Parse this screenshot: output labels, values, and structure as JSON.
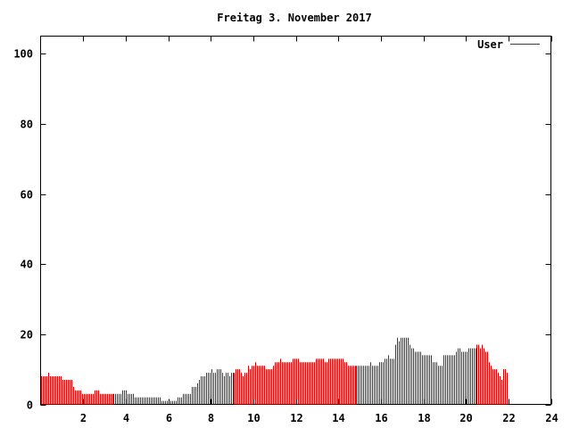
{
  "chart_data": {
    "type": "bar",
    "title": "Freitag 3. November 2017",
    "xlabel": "",
    "ylabel": "",
    "xlim": [
      0,
      24
    ],
    "ylim": [
      0,
      105
    ],
    "x_ticks": [
      2,
      4,
      6,
      8,
      10,
      12,
      14,
      16,
      18,
      20,
      22,
      24
    ],
    "y_ticks": [
      0,
      20,
      40,
      60,
      80,
      100
    ],
    "grid": false,
    "legend_position": "top-right",
    "bar_color": "#cc0000",
    "series": [
      {
        "name": "User",
        "step_hours": 0.0833,
        "values": [
          8,
          8,
          8,
          8,
          9,
          8,
          8,
          8,
          8,
          8,
          8,
          8,
          7,
          7,
          7,
          7,
          7,
          7,
          5,
          4,
          4,
          4,
          4,
          3,
          3,
          3,
          3,
          3,
          3,
          3,
          4,
          4,
          4,
          3,
          3,
          3,
          3,
          3,
          3,
          3,
          3,
          3,
          3,
          3,
          3,
          3,
          4,
          4,
          4,
          3,
          3,
          3,
          3,
          2,
          2,
          2,
          2,
          2,
          2,
          2,
          2,
          2,
          2,
          2,
          2,
          2,
          2,
          2,
          1,
          1,
          1,
          1,
          1,
          1,
          1,
          1,
          1,
          2,
          2,
          2,
          3,
          3,
          3,
          3,
          3,
          5,
          5,
          5,
          6,
          7,
          8,
          8,
          8,
          9,
          9,
          9,
          10,
          9,
          9,
          10,
          10,
          10,
          9,
          8,
          9,
          9,
          8,
          9,
          9,
          9,
          10,
          10,
          10,
          9,
          8,
          9,
          9,
          11,
          10,
          11,
          11,
          12,
          11,
          11,
          11,
          11,
          11,
          10,
          10,
          10,
          10,
          11,
          12,
          12,
          12,
          13,
          12,
          12,
          12,
          12,
          12,
          12,
          13,
          13,
          13,
          13,
          12,
          12,
          12,
          12,
          12,
          12,
          12,
          12,
          12,
          13,
          13,
          13,
          13,
          13,
          12,
          12,
          13,
          13,
          13,
          13,
          13,
          13,
          13,
          13,
          13,
          12,
          12,
          11,
          11,
          11,
          11,
          11,
          11,
          11,
          11,
          11,
          11,
          11,
          11,
          11,
          12,
          11,
          11,
          11,
          11,
          12,
          12,
          12,
          13,
          13,
          14,
          13,
          13,
          13,
          17,
          19,
          18,
          19,
          19,
          19,
          19,
          19,
          17,
          16,
          16,
          15,
          15,
          15,
          15,
          14,
          14,
          14,
          14,
          14,
          14,
          12,
          12,
          12,
          11,
          11,
          11,
          14,
          14,
          14,
          14,
          14,
          14,
          14,
          15,
          16,
          16,
          15,
          15,
          15,
          15,
          16,
          16,
          16,
          16,
          16,
          17,
          17,
          16,
          17,
          16,
          15,
          15,
          12,
          11,
          10,
          10,
          10,
          9,
          8,
          7,
          10,
          10,
          9
        ]
      }
    ]
  }
}
